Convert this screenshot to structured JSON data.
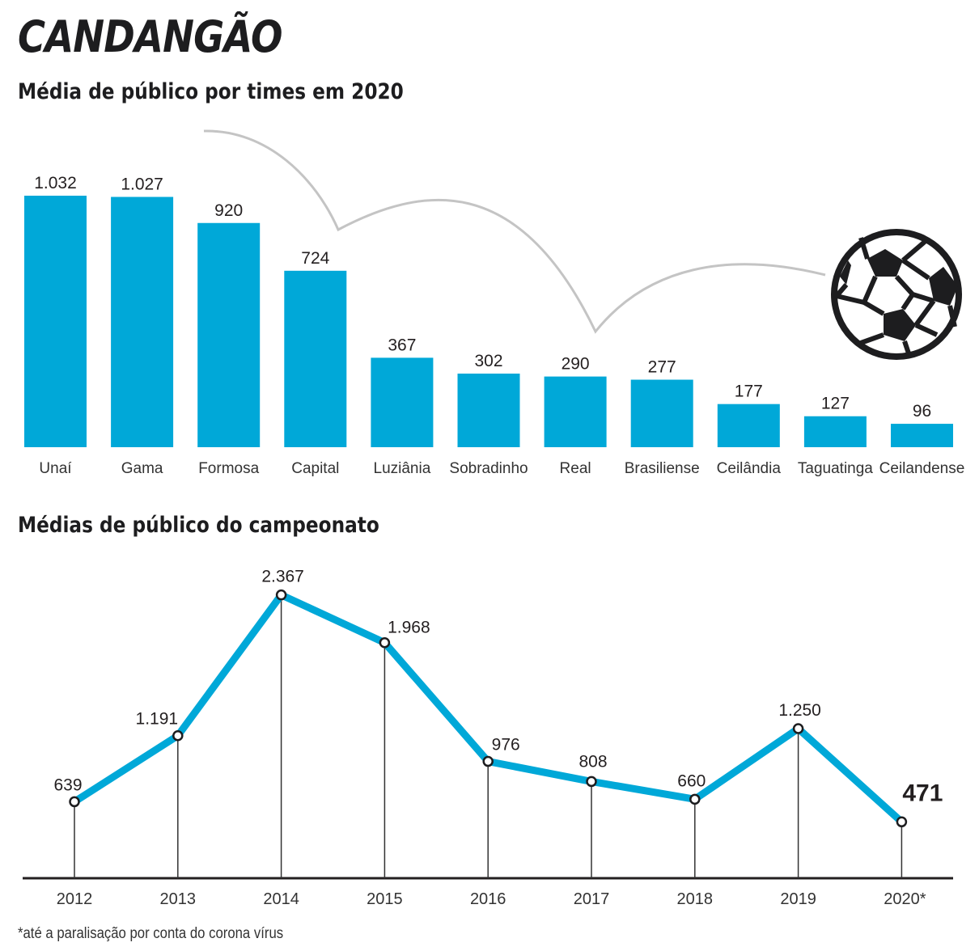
{
  "header": {
    "title": "CANDANGÃO"
  },
  "footnote": "*até a paralisação por conta do corona vírus",
  "icons": {
    "ball": "soccer-ball-icon",
    "trajectory": "bounce-trajectory-line"
  },
  "colors": {
    "bar": "#00a8d8",
    "line": "#00a8d8",
    "text": "#231f20",
    "trajectory": "#c4c4c4"
  },
  "chart_data": [
    {
      "type": "bar",
      "title": "Média de público por times em 2020",
      "xlabel": "",
      "ylabel": "",
      "categories": [
        "Unaí",
        "Gama",
        "Formosa",
        "Capital",
        "Luziânia",
        "Sobradinho",
        "Real",
        "Brasiliense",
        "Ceilândia",
        "Taguatinga",
        "Ceilandense"
      ],
      "values": [
        1032,
        1027,
        920,
        724,
        367,
        302,
        290,
        277,
        177,
        127,
        96
      ],
      "value_labels": [
        "1.032",
        "1.027",
        "920",
        "724",
        "367",
        "302",
        "290",
        "277",
        "177",
        "127",
        "96"
      ],
      "ylim": [
        0,
        1032
      ],
      "grid": false,
      "legend": "none"
    },
    {
      "type": "line",
      "title": "Médias de público do campeonato",
      "xlabel": "",
      "ylabel": "",
      "x": [
        "2012",
        "2013",
        "2014",
        "2015",
        "2016",
        "2017",
        "2018",
        "2019",
        "2020*"
      ],
      "values": [
        639,
        1191,
        2367,
        1968,
        976,
        808,
        660,
        1250,
        471
      ],
      "value_labels": [
        "639",
        "1.191",
        "2.367",
        "1.968",
        "976",
        "808",
        "660",
        "1.250",
        "471"
      ],
      "highlight_index": 8,
      "ylim": [
        0,
        2367
      ],
      "grid": false,
      "legend": "none"
    }
  ]
}
